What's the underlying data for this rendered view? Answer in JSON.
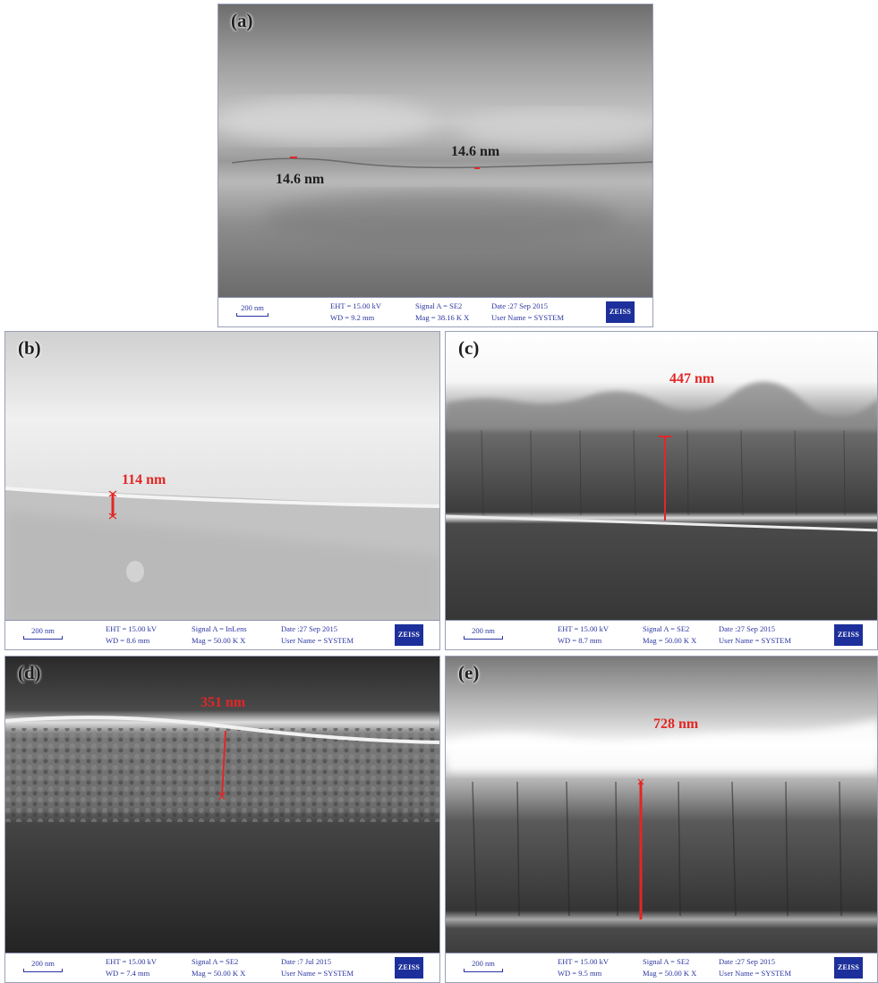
{
  "panels": {
    "a": {
      "label": "(a)",
      "measure_1": "14.6 nm",
      "measure_2": "14.6 nm",
      "info": {
        "scale": "200 nm",
        "eht": "EHT = 15.00 kV",
        "wd": "WD = 9.2 mm",
        "signal": "Signal A = SE2",
        "mag": "Mag = 38.16 K X",
        "date": "Date :27 Sep 2015",
        "user": "User Name = SYSTEM",
        "logo": "ZEISS"
      }
    },
    "b": {
      "label": "(b)",
      "measure": "114 nm",
      "info": {
        "scale": "200 nm",
        "eht": "EHT = 15.00 kV",
        "wd": "WD = 8.6 mm",
        "signal": "Signal A = InLens",
        "mag": "Mag = 50.00 K X",
        "date": "Date :27 Sep 2015",
        "user": "User Name = SYSTEM",
        "logo": "ZEISS"
      }
    },
    "c": {
      "label": "(c)",
      "measure": "447 nm",
      "info": {
        "scale": "200 nm",
        "eht": "EHT = 15.00 kV",
        "wd": "WD = 8.7 mm",
        "signal": "Signal A = SE2",
        "mag": "Mag = 50.00 K X",
        "date": "Date :27 Sep 2015",
        "user": "User Name = SYSTEM",
        "logo": "ZEISS"
      }
    },
    "d": {
      "label": "(d)",
      "measure": "351 nm",
      "info": {
        "scale": "200 nm",
        "eht": "EHT = 15.00 kV",
        "wd": "WD = 7.4 mm",
        "signal": "Signal A = SE2",
        "mag": "Mag = 50.00 K X",
        "date": "Date :7 Jul 2015",
        "user": "User Name = SYSTEM",
        "logo": "ZEISS"
      }
    },
    "e": {
      "label": "(e)",
      "measure": "728 nm",
      "info": {
        "scale": "200 nm",
        "eht": "EHT = 15.00 kV",
        "wd": "WD = 9.5 mm",
        "signal": "Signal A = SE2",
        "mag": "Mag = 50.00 K X",
        "date": "Date :27 Sep 2015",
        "user": "User Name = SYSTEM",
        "logo": "ZEISS"
      }
    }
  },
  "colors": {
    "measure": "#e32626",
    "info_text": "#2b35a0",
    "zeiss_blue": "#1c2f9a"
  }
}
